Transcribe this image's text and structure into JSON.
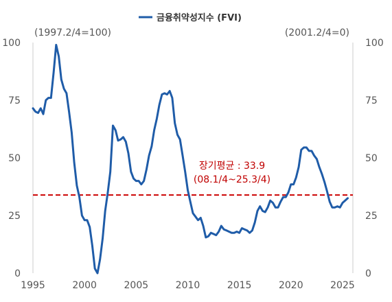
{
  "chart_data": {
    "type": "line",
    "legend": {
      "label": "금융취약성지수 (FVI)",
      "placement": "top-center"
    },
    "base_left": "(1997.2/4=100)",
    "base_right": "(2001.2/4=0)",
    "x_ticks": [
      "1995",
      "2000",
      "2005",
      "2010",
      "2015",
      "2020",
      "2025"
    ],
    "y_ticks": [
      "0",
      "25",
      "50",
      "75",
      "100"
    ],
    "xlim": [
      1995,
      2026
    ],
    "ylim": [
      0,
      100
    ],
    "reference_line": {
      "value": 33.9,
      "label_line1": "장기평균 : 33.9",
      "label_line2": "(08.1/4~25.3/4)"
    },
    "colors": {
      "series": "#1f5ca8",
      "reference": "#cc0000",
      "axis": "#cccccc"
    },
    "series": [
      {
        "name": "금융취약성지수 (FVI)",
        "points": [
          [
            1995.0,
            71.5
          ],
          [
            1995.25,
            70
          ],
          [
            1995.5,
            69.5
          ],
          [
            1995.75,
            71.5
          ],
          [
            1996.0,
            69
          ],
          [
            1996.25,
            75
          ],
          [
            1996.5,
            76
          ],
          [
            1996.75,
            76
          ],
          [
            1997.0,
            87
          ],
          [
            1997.25,
            99
          ],
          [
            1997.5,
            94
          ],
          [
            1997.75,
            84
          ],
          [
            1998.0,
            80
          ],
          [
            1998.25,
            78
          ],
          [
            1998.5,
            70
          ],
          [
            1998.75,
            61
          ],
          [
            1999.0,
            48
          ],
          [
            1999.25,
            38
          ],
          [
            1999.5,
            33
          ],
          [
            1999.75,
            25
          ],
          [
            2000.0,
            23
          ],
          [
            2000.25,
            23
          ],
          [
            2000.5,
            20
          ],
          [
            2000.75,
            12
          ],
          [
            2001.0,
            2
          ],
          [
            2001.25,
            0
          ],
          [
            2001.5,
            6
          ],
          [
            2001.75,
            15
          ],
          [
            2002.0,
            27
          ],
          [
            2002.25,
            35
          ],
          [
            2002.5,
            44
          ],
          [
            2002.75,
            64
          ],
          [
            2003.0,
            62
          ],
          [
            2003.25,
            57.5
          ],
          [
            2003.5,
            58
          ],
          [
            2003.75,
            59
          ],
          [
            2004.0,
            57
          ],
          [
            2004.25,
            52
          ],
          [
            2004.5,
            44
          ],
          [
            2004.75,
            41
          ],
          [
            2005.0,
            40
          ],
          [
            2005.25,
            40
          ],
          [
            2005.5,
            38.5
          ],
          [
            2005.75,
            40
          ],
          [
            2006.0,
            45
          ],
          [
            2006.25,
            51
          ],
          [
            2006.5,
            55
          ],
          [
            2006.75,
            62
          ],
          [
            2007.0,
            67
          ],
          [
            2007.25,
            73
          ],
          [
            2007.5,
            77.5
          ],
          [
            2007.75,
            78
          ],
          [
            2008.0,
            77.5
          ],
          [
            2008.25,
            79
          ],
          [
            2008.5,
            76
          ],
          [
            2008.75,
            65
          ],
          [
            2009.0,
            60
          ],
          [
            2009.25,
            58
          ],
          [
            2009.5,
            51
          ],
          [
            2009.75,
            44
          ],
          [
            2010.0,
            36
          ],
          [
            2010.25,
            31
          ],
          [
            2010.5,
            26
          ],
          [
            2010.75,
            24.5
          ],
          [
            2011.0,
            23
          ],
          [
            2011.25,
            24
          ],
          [
            2011.5,
            20.5
          ],
          [
            2011.75,
            15.5
          ],
          [
            2012.0,
            16
          ],
          [
            2012.25,
            17.5
          ],
          [
            2012.5,
            17
          ],
          [
            2012.75,
            16.5
          ],
          [
            2013.0,
            18
          ],
          [
            2013.25,
            20.5
          ],
          [
            2013.5,
            19
          ],
          [
            2013.75,
            18.5
          ],
          [
            2014.0,
            18
          ],
          [
            2014.25,
            17.5
          ],
          [
            2014.5,
            17.5
          ],
          [
            2014.75,
            18
          ],
          [
            2015.0,
            17.5
          ],
          [
            2015.25,
            19.5
          ],
          [
            2015.5,
            19
          ],
          [
            2015.75,
            18.5
          ],
          [
            2016.0,
            17.5
          ],
          [
            2016.25,
            18.5
          ],
          [
            2016.5,
            22
          ],
          [
            2016.75,
            27
          ],
          [
            2017.0,
            29
          ],
          [
            2017.25,
            27
          ],
          [
            2017.5,
            26.5
          ],
          [
            2017.75,
            28.5
          ],
          [
            2018.0,
            31.5
          ],
          [
            2018.25,
            30.5
          ],
          [
            2018.5,
            28.5
          ],
          [
            2018.75,
            28.5
          ],
          [
            2019.0,
            31
          ],
          [
            2019.25,
            33
          ],
          [
            2019.5,
            33
          ],
          [
            2019.75,
            35
          ],
          [
            2020.0,
            38.5
          ],
          [
            2020.25,
            38.5
          ],
          [
            2020.5,
            41.5
          ],
          [
            2020.75,
            46
          ],
          [
            2021.0,
            53.5
          ],
          [
            2021.25,
            54.5
          ],
          [
            2021.5,
            54.5
          ],
          [
            2021.75,
            53
          ],
          [
            2022.0,
            53
          ],
          [
            2022.25,
            51
          ],
          [
            2022.5,
            49.5
          ],
          [
            2022.75,
            46
          ],
          [
            2023.0,
            43
          ],
          [
            2023.25,
            39.5
          ],
          [
            2023.5,
            35.5
          ],
          [
            2023.75,
            31
          ],
          [
            2024.0,
            28.5
          ],
          [
            2024.25,
            28.5
          ],
          [
            2024.5,
            29
          ],
          [
            2024.75,
            28.5
          ],
          [
            2025.0,
            30.5
          ],
          [
            2025.25,
            31.5
          ],
          [
            2025.5,
            32.5
          ]
        ]
      }
    ]
  }
}
